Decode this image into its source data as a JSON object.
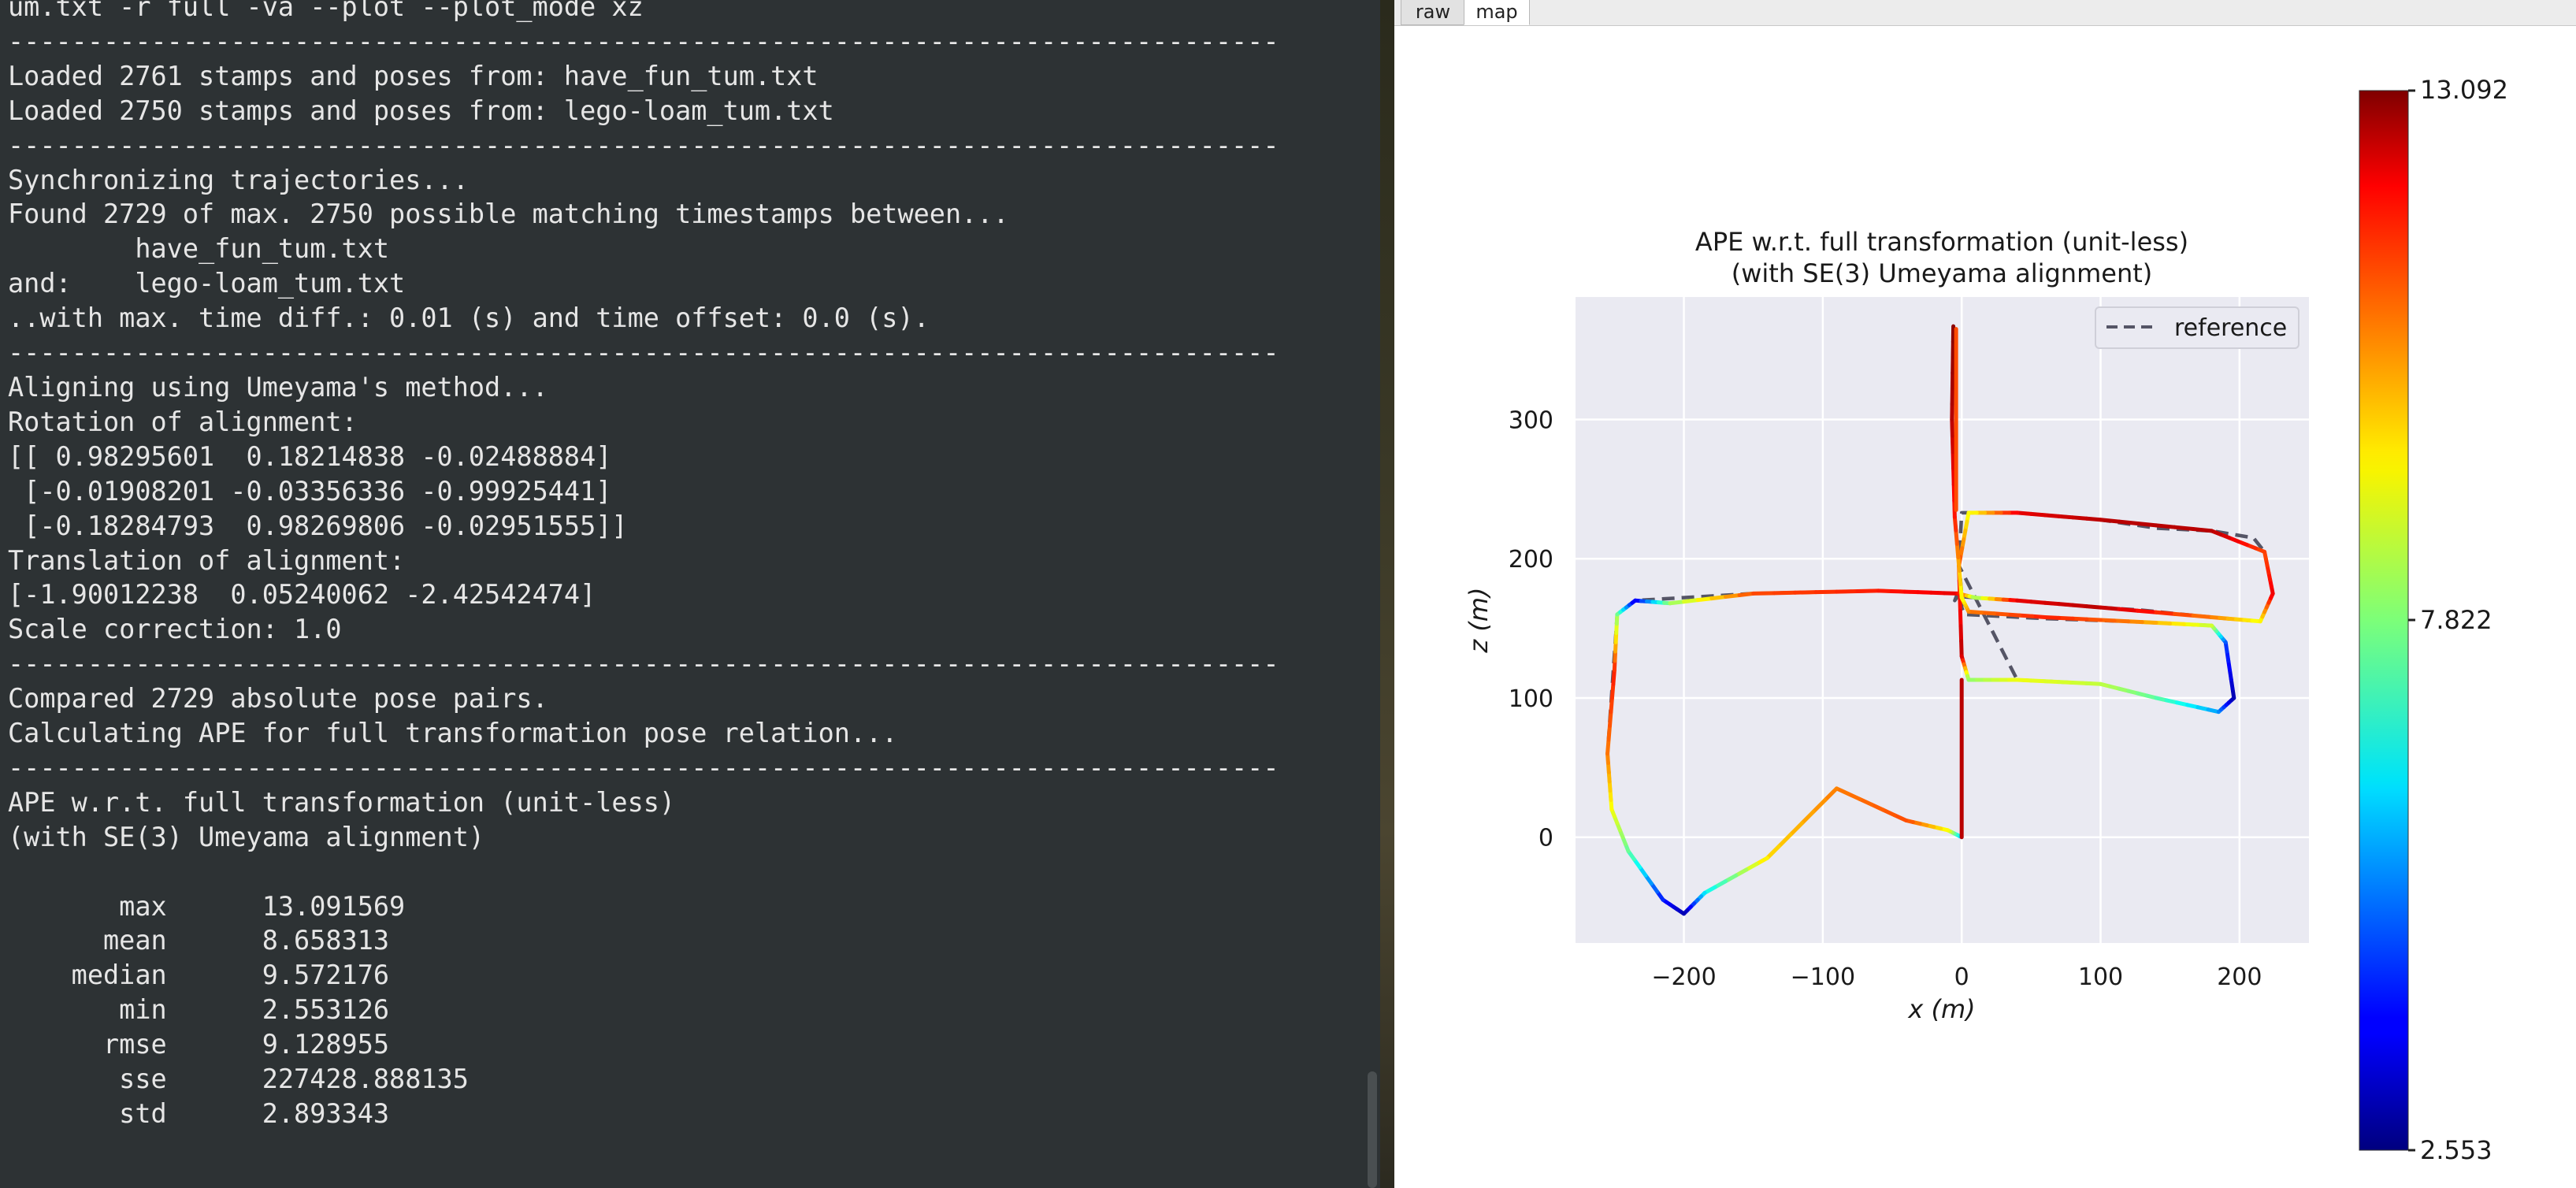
{
  "terminal": {
    "lines": [
      "um.txt -r full -va --plot --plot_mode xz",
      "--------------------------------------------------------------------------------",
      "Loaded 2761 stamps and poses from: have_fun_tum.txt",
      "Loaded 2750 stamps and poses from: lego-loam_tum.txt",
      "--------------------------------------------------------------------------------",
      "Synchronizing trajectories...",
      "Found 2729 of max. 2750 possible matching timestamps between...",
      "        have_fun_tum.txt",
      "and:    lego-loam_tum.txt",
      "..with max. time diff.: 0.01 (s) and time offset: 0.0 (s).",
      "--------------------------------------------------------------------------------",
      "Aligning using Umeyama's method...",
      "Rotation of alignment:",
      "[[ 0.98295601  0.18214838 -0.02488884]",
      " [-0.01908201 -0.03356336 -0.99925441]",
      " [-0.18284793  0.98269806 -0.02951555]]",
      "Translation of alignment:",
      "[-1.90012238  0.05240062 -2.42542474]",
      "Scale correction: 1.0",
      "--------------------------------------------------------------------------------",
      "Compared 2729 absolute pose pairs.",
      "Calculating APE for full transformation pose relation...",
      "--------------------------------------------------------------------------------",
      "APE w.r.t. full transformation (unit-less)",
      "(with SE(3) Umeyama alignment)",
      "",
      "       max      13.091569",
      "      mean      8.658313",
      "    median      9.572176",
      "       min      2.553126",
      "      rmse      9.128955",
      "       sse      227428.888135",
      "       std      2.893343"
    ]
  },
  "plot_window": {
    "tabs": [
      "raw",
      "map"
    ],
    "active_tab": "map"
  },
  "chart_data": {
    "type": "line",
    "title": "APE w.r.t. full transformation (unit-less)",
    "subtitle": "(with SE(3) Umeyama alignment)",
    "xlabel": "x (m)",
    "ylabel": "z (m)",
    "xlim": [
      -278,
      250
    ],
    "ylim": [
      -76,
      388
    ],
    "xticks": [
      -200,
      -100,
      0,
      100,
      200
    ],
    "yticks": [
      0,
      100,
      200,
      300
    ],
    "xtick_labels": [
      "−200",
      "−100",
      "0",
      "100",
      "200"
    ],
    "ytick_labels": [
      "0",
      "100",
      "200",
      "300"
    ],
    "grid": true,
    "legend": {
      "position": "top-right",
      "entries": [
        "reference"
      ]
    },
    "colorbar": {
      "colormap": "jet",
      "min": 2.553,
      "max": 13.092,
      "tick_labels": [
        "13.092",
        "7.822",
        "2.553"
      ]
    },
    "colors": {
      "reference": "#555566",
      "axes_bg": "#eaeaf2",
      "grid": "#ffffff"
    },
    "series": [
      {
        "name": "reference",
        "style": "dashed",
        "x": [
          0,
          -10,
          -40,
          -90,
          -140,
          -185,
          -200,
          -215,
          -240,
          -252,
          -255,
          -248,
          -235,
          -150,
          -60,
          -3,
          -5,
          -3,
          40,
          100,
          130,
          180,
          215,
          224,
          218,
          210,
          180,
          140,
          100,
          40,
          0,
          -2,
          40,
          100,
          140,
          185,
          196,
          190,
          180,
          120,
          60,
          2,
          0,
          0,
          -5,
          -7,
          -6
        ],
        "y": [
          0,
          5,
          12,
          35,
          -15,
          -40,
          -55,
          -45,
          -10,
          20,
          60,
          160,
          170,
          175,
          177,
          175,
          170,
          173,
          170,
          165,
          163,
          158,
          155,
          175,
          205,
          215,
          220,
          222,
          228,
          233,
          233,
          195,
          113,
          110,
          100,
          90,
          100,
          140,
          152,
          155,
          157,
          160,
          165,
          175,
          230,
          300,
          365
        ]
      }
    ],
    "trajectory": [
      {
        "x": 0,
        "z": 0,
        "ape": 5.5
      },
      {
        "x": -10,
        "z": 5,
        "ape": 9.0
      },
      {
        "x": -40,
        "z": 12,
        "ape": 11.0
      },
      {
        "x": -90,
        "z": 35,
        "ape": 10.5
      },
      {
        "x": -140,
        "z": -15,
        "ape": 9.5
      },
      {
        "x": -185,
        "z": -40,
        "ape": 6.5
      },
      {
        "x": -200,
        "z": -55,
        "ape": 3.0
      },
      {
        "x": -215,
        "z": -45,
        "ape": 4.0
      },
      {
        "x": -240,
        "z": -10,
        "ape": 7.5
      },
      {
        "x": -252,
        "z": 20,
        "ape": 9.0
      },
      {
        "x": -255,
        "z": 60,
        "ape": 10.5
      },
      {
        "x": -250,
        "z": 120,
        "ape": 11.5
      },
      {
        "x": -248,
        "z": 160,
        "ape": 8.0
      },
      {
        "x": -235,
        "z": 170,
        "ape": 3.5
      },
      {
        "x": -210,
        "z": 168,
        "ape": 8.0
      },
      {
        "x": -150,
        "z": 175,
        "ape": 11.0
      },
      {
        "x": -60,
        "z": 177,
        "ape": 11.5
      },
      {
        "x": -3,
        "z": 175,
        "ape": 12.0
      },
      {
        "x": 10,
        "z": 172,
        "ape": 8.0
      },
      {
        "x": 40,
        "z": 170,
        "ape": 12.0
      },
      {
        "x": 100,
        "z": 165,
        "ape": 12.5
      },
      {
        "x": 180,
        "z": 158,
        "ape": 10.5
      },
      {
        "x": 215,
        "z": 155,
        "ape": 9.0
      },
      {
        "x": 224,
        "z": 175,
        "ape": 12.0
      },
      {
        "x": 218,
        "z": 205,
        "ape": 11.0
      },
      {
        "x": 180,
        "z": 220,
        "ape": 12.5
      },
      {
        "x": 100,
        "z": 228,
        "ape": 12.5
      },
      {
        "x": 40,
        "z": 233,
        "ape": 12.0
      },
      {
        "x": 5,
        "z": 233,
        "ape": 9.0
      },
      {
        "x": -2,
        "z": 195,
        "ape": 11.0
      },
      {
        "x": 0,
        "z": 130,
        "ape": 12.5
      },
      {
        "x": 5,
        "z": 113,
        "ape": 8.0
      },
      {
        "x": 40,
        "z": 113,
        "ape": 9.0
      },
      {
        "x": 100,
        "z": 110,
        "ape": 8.5
      },
      {
        "x": 140,
        "z": 100,
        "ape": 7.5
      },
      {
        "x": 185,
        "z": 90,
        "ape": 5.5
      },
      {
        "x": 196,
        "z": 100,
        "ape": 3.0
      },
      {
        "x": 190,
        "z": 140,
        "ape": 4.5
      },
      {
        "x": 180,
        "z": 152,
        "ape": 8.5
      },
      {
        "x": 120,
        "z": 155,
        "ape": 10.5
      },
      {
        "x": 60,
        "z": 158,
        "ape": 11.5
      },
      {
        "x": 5,
        "z": 162,
        "ape": 10.5
      },
      {
        "x": 0,
        "z": 172,
        "ape": 9.0
      },
      {
        "x": -5,
        "z": 230,
        "ape": 11.5
      },
      {
        "x": -7,
        "z": 300,
        "ape": 12.5
      },
      {
        "x": -6,
        "z": 367,
        "ape": 13.0
      }
    ],
    "vertical_segments": [
      {
        "x0": 0,
        "z0": 0,
        "x1": 0,
        "z1": 113,
        "ape": 12.5
      },
      {
        "x0": -4,
        "z0": 235,
        "x1": -4,
        "z1": 365,
        "ape": 11.0
      }
    ]
  }
}
